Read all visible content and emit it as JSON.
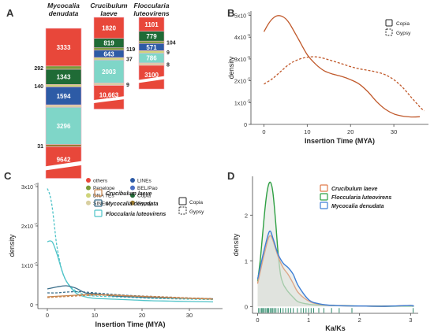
{
  "panel_letters": [
    "A",
    "B",
    "C",
    "D"
  ],
  "chart_data": [
    {
      "type": "bar",
      "panel": "A",
      "series": [
        {
          "name": "Mycocalia denudata",
          "name_lines": [
            "Mycocalia",
            "denudata"
          ],
          "segments": [
            {
              "label": "others",
              "value": 3333,
              "color": "#e8473a",
              "text": "3333"
            },
            {
              "label": "Penelope",
              "value": 292,
              "color": "#7a9a3a",
              "text": "292",
              "outside": true
            },
            {
              "label": "Copia",
              "value": 1343,
              "color": "#1f6b36",
              "text": "1343"
            },
            {
              "label": "DNA TEs",
              "value": 140,
              "color": "#cfd47a",
              "text": "140",
              "outside": true
            },
            {
              "label": "BEL/Pao",
              "value": 1594,
              "color": "#2d5ba6",
              "text": "1594"
            },
            {
              "label": "SINEs",
              "value": 140,
              "color": "#d8cfa0",
              "text": ""
            },
            {
              "label": "LINEs",
              "value": 3296,
              "color": "#7fd6c8",
              "text": "3296"
            },
            {
              "label": "Gypsy_low",
              "value": 31,
              "color": "#9a7a30",
              "text": "31",
              "outside": true
            },
            {
              "label": "Gypsy",
              "value": 9642,
              "color": "#e8473a",
              "text": "9642",
              "broken": true
            }
          ]
        },
        {
          "name": "Crucibulum laeve",
          "name_lines": [
            "Crucibulum",
            "laeve"
          ],
          "segments": [
            {
              "label": "others",
              "value": 1820,
              "color": "#e8473a",
              "text": "1820"
            },
            {
              "label": "Copia",
              "value": 819,
              "color": "#1f6b36",
              "text": "819"
            },
            {
              "label": "Penelope",
              "value": 119,
              "color": "#7a9a3a",
              "text": "119",
              "outside": true
            },
            {
              "label": "BEL/Pao",
              "value": 643,
              "color": "#2d5ba6",
              "text": "643"
            },
            {
              "label": "DNA TEs",
              "value": 37,
              "color": "#cfd47a",
              "text": "37",
              "outside": true
            },
            {
              "label": "LINEs",
              "value": 2003,
              "color": "#7fd6c8",
              "text": "2003"
            },
            {
              "label": "SINEs",
              "value": 9,
              "color": "#d8cfa0",
              "text": "9",
              "outside": true
            },
            {
              "label": "Gypsy",
              "value": 10663,
              "color": "#e8473a",
              "text": "10,663",
              "broken": true
            }
          ]
        },
        {
          "name": "Floccularia luteovirens",
          "name_lines": [
            "Floccularia",
            "luteovirens"
          ],
          "segments": [
            {
              "label": "others",
              "value": 1101,
              "color": "#e8473a",
              "text": "1101"
            },
            {
              "label": "Copia",
              "value": 779,
              "color": "#1f6b36",
              "text": "779"
            },
            {
              "label": "Penelope",
              "value": 104,
              "color": "#7a9a3a",
              "text": "104",
              "outside": true
            },
            {
              "label": "BEL/Pao",
              "value": 571,
              "color": "#2d5ba6",
              "text": "571"
            },
            {
              "label": "DNA TEs",
              "value": 9,
              "color": "#cfd47a",
              "text": "9",
              "outside": true
            },
            {
              "label": "LINEs",
              "value": 786,
              "color": "#7fd6c8",
              "text": "786"
            },
            {
              "label": "SINEs",
              "value": 8,
              "color": "#d8cfa0",
              "text": "8",
              "outside": true
            },
            {
              "label": "Gypsy",
              "value": 3100,
              "color": "#e8473a",
              "text": "3100",
              "broken": true
            }
          ]
        }
      ],
      "legend": [
        {
          "label": "others",
          "color": "#e8473a"
        },
        {
          "label": "LINEs",
          "color": "#2d5ba6"
        },
        {
          "label": "Penelope",
          "color": "#7a9a3a"
        },
        {
          "label": "BEL/Pao",
          "color": "#4a6fc4"
        },
        {
          "label": "DNA TEs",
          "color": "#cfd47a"
        },
        {
          "label": "Copia",
          "color": "#1f6b36"
        },
        {
          "label": "SINEs",
          "color": "#d8cfa0"
        },
        {
          "label": "Gypsy",
          "color": "#9a7a30"
        }
      ]
    },
    {
      "type": "line",
      "panel": "B",
      "xlabel": "Insertion Time (MYA)",
      "ylabel": "density",
      "xlim": [
        -3,
        38
      ],
      "ylim": [
        0,
        5.2e-05
      ],
      "xticks": [
        0,
        10,
        20,
        30
      ],
      "yticks": [
        0,
        1e-05,
        2e-05,
        3e-05,
        4e-05,
        5e-05
      ],
      "ytick_labels": [
        "0",
        "1x10",
        "2x10",
        "3x10",
        "4x10",
        "5x10"
      ],
      "ytick_exponent": "-5",
      "legend": [
        {
          "label": "Copia",
          "style": "solid"
        },
        {
          "label": "Gypsy",
          "style": "dashed"
        }
      ],
      "legend_position": "top-right",
      "series": [
        {
          "style": "solid",
          "color": "#c0592b",
          "x": [
            0,
            1,
            2,
            3,
            4,
            5,
            6,
            8,
            10,
            12,
            14,
            16,
            18,
            20,
            22,
            24,
            26,
            28,
            30,
            32,
            34,
            36
          ],
          "y": [
            4.25e-05,
            4.6e-05,
            4.85e-05,
            4.98e-05,
            4.97e-05,
            4.85e-05,
            4.6e-05,
            3.9e-05,
            3.2e-05,
            2.75e-05,
            2.45e-05,
            2.3e-05,
            2.2e-05,
            2.05e-05,
            1.85e-05,
            1.5e-05,
            1.05e-05,
            7e-06,
            4.8e-06,
            3.8e-06,
            3.4e-06,
            3.5e-06
          ]
        },
        {
          "style": "dashed",
          "color": "#c0592b",
          "x": [
            0,
            2,
            4,
            6,
            8,
            10,
            12,
            14,
            16,
            18,
            20,
            22,
            24,
            26,
            28,
            30,
            32,
            34,
            36,
            37
          ],
          "y": [
            1.85e-05,
            2.1e-05,
            2.45e-05,
            2.78e-05,
            2.98e-05,
            3.08e-05,
            3.1e-05,
            3.02e-05,
            2.9e-05,
            2.78e-05,
            2.65e-05,
            2.55e-05,
            2.48e-05,
            2.4e-05,
            2.28e-05,
            2.05e-05,
            1.7e-05,
            1.25e-05,
            8e-06,
            6.2e-06
          ]
        }
      ]
    },
    {
      "type": "line",
      "panel": "C",
      "xlabel": "Insertion Time (MYA)",
      "ylabel": "density",
      "xlim": [
        -2,
        37
      ],
      "ylim": [
        -1e-08,
        3.1e-07
      ],
      "xticks": [
        0,
        10,
        20,
        30
      ],
      "yticks": [
        0,
        1e-07,
        2e-07,
        3e-07
      ],
      "ytick_labels": [
        "0",
        "1x10",
        "2x10",
        "3x10"
      ],
      "ytick_exponent": "-7",
      "legend": [
        {
          "label": "Crucibulum laeve",
          "color": "#c9874f"
        },
        {
          "label": "Mycocalia denudata",
          "color": "#3a6e8a"
        },
        {
          "label": "Floccularia luteovirens",
          "color": "#4ec3c8"
        }
      ],
      "style_legend": [
        {
          "label": "Copia",
          "style": "solid"
        },
        {
          "label": "Gypsy",
          "style": "dashed"
        }
      ],
      "series": [
        {
          "color": "#4ec3c8",
          "style": "dashed",
          "x": [
            0,
            0.5,
            1,
            1.5,
            2,
            3,
            4,
            5,
            6,
            8,
            10,
            14,
            18,
            22,
            26,
            30,
            35
          ],
          "y": [
            2.95e-07,
            2.8e-07,
            2.5e-07,
            2e-07,
            1.5e-07,
            9e-08,
            6e-08,
            4.5e-08,
            3.5e-08,
            2.5e-08,
            2.2e-08,
            2e-08,
            1.8e-08,
            1.6e-08,
            1.5e-08,
            1.4e-08,
            1.3e-08
          ]
        },
        {
          "color": "#4ec3c8",
          "style": "solid",
          "x": [
            0,
            1,
            2,
            3,
            4,
            6,
            8,
            10,
            14,
            18,
            22,
            26,
            30,
            35
          ],
          "y": [
            1.6e-07,
            1.6e-07,
            1.3e-07,
            9e-08,
            6e-08,
            3e-08,
            2e-08,
            1.6e-08,
            1.4e-08,
            1.2e-08,
            1e-08,
            9e-09,
            8e-09,
            7e-09
          ]
        },
        {
          "color": "#3a6e8a",
          "style": "solid",
          "x": [
            0,
            2,
            4,
            6,
            8,
            10,
            12,
            14,
            18,
            22,
            26,
            30,
            35
          ],
          "y": [
            4e-08,
            4.5e-08,
            4.8e-08,
            4.2e-08,
            3e-08,
            2.8e-08,
            2.5e-08,
            2.2e-08,
            2e-08,
            1.8e-08,
            1.7e-08,
            1.6e-08,
            1.5e-08
          ]
        },
        {
          "color": "#3a6e8a",
          "style": "dashed",
          "x": [
            0,
            2,
            4,
            6,
            8,
            10,
            12,
            14,
            18,
            22,
            26,
            30,
            35
          ],
          "y": [
            3e-08,
            3e-08,
            3.2e-08,
            3.3e-08,
            3.2e-08,
            3e-08,
            2.8e-08,
            2.6e-08,
            2.3e-08,
            2.1e-08,
            1.9e-08,
            1.7e-08,
            1.5e-08
          ]
        },
        {
          "color": "#c9874f",
          "style": "solid",
          "x": [
            0,
            3,
            6,
            9,
            12,
            15,
            18,
            22,
            26,
            30,
            35
          ],
          "y": [
            2e-08,
            2.2e-08,
            2.4e-08,
            2.6e-08,
            2.5e-08,
            2.4e-08,
            2.2e-08,
            2e-08,
            1.8e-08,
            1.6e-08,
            1.4e-08
          ]
        },
        {
          "color": "#c9874f",
          "style": "dashed",
          "x": [
            0,
            3,
            6,
            9,
            12,
            15,
            18,
            22,
            26,
            30,
            35
          ],
          "y": [
            1.8e-08,
            2e-08,
            2.2e-08,
            2.4e-08,
            2.4e-08,
            2.3e-08,
            2.2e-08,
            2.1e-08,
            1.9e-08,
            1.7e-08,
            1.5e-08
          ]
        }
      ]
    },
    {
      "type": "area",
      "panel": "D",
      "xlabel": "Ka/Ks",
      "ylabel": "density",
      "xlim": [
        -0.1,
        3.15
      ],
      "ylim": [
        -0.15,
        2.85
      ],
      "xticks": [
        0,
        1,
        2,
        3
      ],
      "yticks": [
        0,
        1,
        2
      ],
      "legend": [
        {
          "label": "Crucibulum laeve",
          "color": "#e07a4a"
        },
        {
          "label": "Floccularia luteovirens",
          "color": "#2ea043"
        },
        {
          "label": "Mycocalia denudata",
          "color": "#3d7fd6"
        }
      ],
      "series": [
        {
          "color": "#2ea043",
          "x": [
            0,
            0.05,
            0.1,
            0.15,
            0.2,
            0.25,
            0.3,
            0.35,
            0.4,
            0.45,
            0.5,
            0.55,
            0.6,
            0.7,
            0.8,
            1.0,
            1.2,
            1.5,
            2.0,
            2.5,
            3.0,
            3.05
          ],
          "y": [
            0.55,
            1.0,
            1.6,
            2.2,
            2.6,
            2.72,
            2.5,
            1.9,
            1.2,
            0.7,
            0.5,
            0.4,
            0.32,
            0.2,
            0.1,
            0.05,
            0.03,
            0.02,
            0.01,
            0.005,
            0.01,
            0
          ]
        },
        {
          "color": "#e07a4a",
          "x": [
            0,
            0.1,
            0.2,
            0.25,
            0.3,
            0.4,
            0.5,
            0.6,
            0.7,
            0.8,
            1.0,
            1.2,
            1.5,
            2.0,
            2.5,
            3.0,
            3.05
          ],
          "y": [
            0.5,
            1.0,
            1.45,
            1.55,
            1.45,
            1.1,
            0.85,
            0.7,
            0.5,
            0.3,
            0.12,
            0.05,
            0.02,
            0.01,
            0.005,
            0.02,
            0
          ]
        },
        {
          "color": "#3d7fd6",
          "x": [
            0,
            0.1,
            0.2,
            0.25,
            0.3,
            0.4,
            0.5,
            0.6,
            0.7,
            0.8,
            1.0,
            1.2,
            1.5,
            2.0,
            2.5,
            3.0,
            3.05
          ],
          "y": [
            0.6,
            1.1,
            1.55,
            1.65,
            1.5,
            1.15,
            0.95,
            0.85,
            0.7,
            0.45,
            0.15,
            0.06,
            0.02,
            0.01,
            0.005,
            0.02,
            0
          ]
        }
      ],
      "rug_x": [
        0.02,
        0.05,
        0.08,
        0.1,
        0.12,
        0.15,
        0.18,
        0.2,
        0.22,
        0.25,
        0.28,
        0.3,
        0.33,
        0.36,
        0.4,
        0.45,
        0.5,
        0.55,
        0.6,
        0.65,
        0.7,
        0.78,
        0.85,
        0.9,
        0.95,
        1.0,
        1.05,
        1.1,
        1.2,
        1.3,
        1.45,
        1.6,
        1.85,
        3.05
      ],
      "rug_color": "#2e8a6a"
    }
  ]
}
